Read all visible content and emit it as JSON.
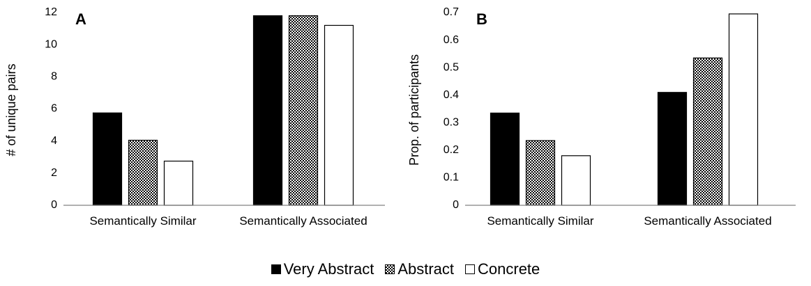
{
  "chart_data": [
    {
      "type": "bar",
      "panel_label": "A",
      "ylabel": "# of unique pairs",
      "ylim": [
        0,
        12
      ],
      "yticks": [
        "0",
        "2",
        "4",
        "6",
        "8",
        "10",
        "12"
      ],
      "categories": [
        "Semantically Similar",
        "Semantically Associated"
      ],
      "series": [
        {
          "name": "Very Abstract",
          "values": [
            5.75,
            11.8
          ]
        },
        {
          "name": "Abstract",
          "values": [
            4.05,
            11.8
          ]
        },
        {
          "name": "Concrete",
          "values": [
            2.75,
            11.2
          ]
        }
      ],
      "grid": false
    },
    {
      "type": "bar",
      "panel_label": "B",
      "ylabel": "Prop. of participants",
      "ylim": [
        0,
        0.7
      ],
      "yticks": [
        "0",
        "0.1",
        "0.2",
        "0.3",
        "0.4",
        "0.5",
        "0.6",
        "0.7"
      ],
      "categories": [
        "Semantically Similar",
        "Semantically Associated"
      ],
      "series": [
        {
          "name": "Very Abstract",
          "values": [
            0.335,
            0.41
          ]
        },
        {
          "name": "Abstract",
          "values": [
            0.235,
            0.535
          ]
        },
        {
          "name": "Concrete",
          "values": [
            0.18,
            0.695
          ]
        }
      ],
      "grid": false
    }
  ],
  "legend": {
    "placement": "bottom-center",
    "items": [
      {
        "label": "Very Abstract",
        "fill": "solid",
        "color": "#000000"
      },
      {
        "label": "Abstract",
        "fill": "checkerboard",
        "color": "#000000"
      },
      {
        "label": "Concrete",
        "fill": "empty",
        "color": "#ffffff"
      }
    ]
  }
}
